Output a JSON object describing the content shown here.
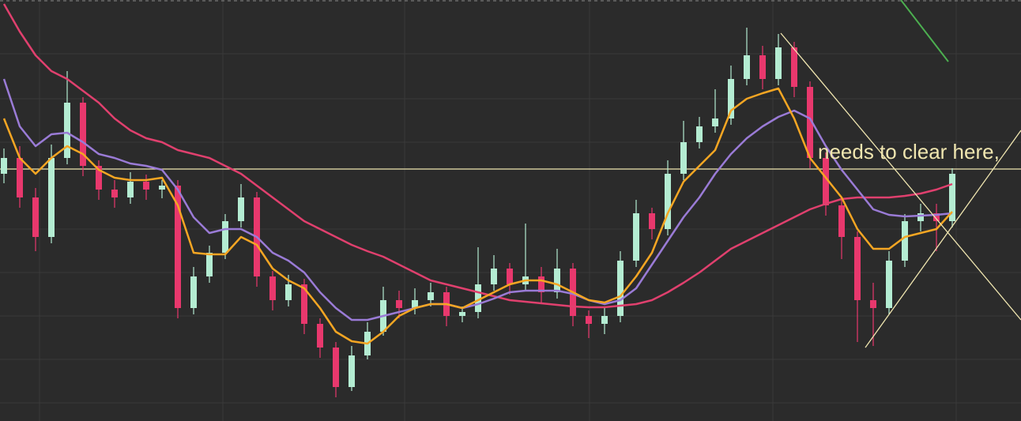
{
  "chart_data": {
    "type": "candlestick",
    "annotation": "needs to clear here,",
    "ylim": [
      0,
      533
    ],
    "level": 319,
    "up_color": "#b4ecd2",
    "down_color": "#e8386d",
    "open": [
      313,
      333,
      283,
      233,
      333,
      403,
      323,
      293,
      283,
      303,
      293,
      298,
      143,
      183,
      213,
      253,
      283,
      183,
      153,
      173,
      123,
      93,
      43,
      83,
      113,
      153,
      143,
      153,
      163,
      133,
      138,
      173,
      193,
      173,
      183,
      163,
      193,
      133,
      123,
      133,
      203,
      263,
      243,
      313,
      353,
      373,
      383,
      433,
      463,
      433,
      473,
      423,
      333,
      273,
      233,
      153,
      143,
      203,
      253,
      263,
      253
    ],
    "high": [
      345,
      348,
      295,
      350,
      443,
      410,
      330,
      305,
      315,
      312,
      305,
      305,
      195,
      222,
      262,
      300,
      290,
      190,
      185,
      180,
      130,
      100,
      95,
      125,
      170,
      165,
      168,
      175,
      170,
      145,
      220,
      210,
      200,
      250,
      195,
      218,
      200,
      140,
      145,
      215,
      280,
      270,
      330,
      380,
      385,
      420,
      450,
      498,
      475,
      490,
      480,
      430,
      340,
      280,
      240,
      175,
      215,
      262,
      275,
      275,
      320
    ],
    "low": [
      301,
      270,
      215,
      225,
      325,
      310,
      280,
      270,
      275,
      280,
      282,
      130,
      135,
      175,
      205,
      245,
      170,
      140,
      145,
      110,
      80,
      30,
      38,
      78,
      108,
      130,
      135,
      145,
      120,
      125,
      130,
      165,
      160,
      165,
      150,
      155,
      120,
      105,
      110,
      125,
      195,
      230,
      235,
      305,
      345,
      365,
      375,
      425,
      420,
      425,
      410,
      320,
      260,
      205,
      100,
      95,
      135,
      195,
      240,
      215,
      245
    ],
    "close": [
      333,
      283,
      233,
      333,
      403,
      323,
      293,
      283,
      303,
      293,
      298,
      143,
      183,
      213,
      253,
      283,
      183,
      153,
      173,
      123,
      93,
      43,
      83,
      113,
      153,
      143,
      153,
      163,
      133,
      138,
      173,
      193,
      173,
      183,
      163,
      193,
      133,
      123,
      133,
      203,
      263,
      243,
      313,
      353,
      373,
      383,
      433,
      463,
      433,
      473,
      423,
      333,
      273,
      233,
      153,
      143,
      203,
      253,
      263,
      253,
      313
    ],
    "series": [
      {
        "color": "#e0406e",
        "values": [
          528,
          493,
          463,
          443,
          433,
          418,
          403,
          383,
          368,
          358,
          353,
          343,
          338,
          333,
          323,
          313,
          298,
          283,
          268,
          253,
          243,
          233,
          223,
          215,
          208,
          198,
          188,
          178,
          173,
          168,
          163,
          158,
          153,
          151,
          149,
          147,
          145,
          144,
          144,
          146,
          148,
          153,
          163,
          175,
          188,
          203,
          218,
          228,
          238,
          248,
          258,
          268,
          275,
          281,
          283,
          283,
          283,
          285,
          288,
          293,
          300
        ]
      },
      {
        "color": "#9a7bd6",
        "values": [
          433,
          373,
          348,
          363,
          365,
          353,
          338,
          333,
          326,
          323,
          318,
          293,
          258,
          238,
          243,
          243,
          233,
          213,
          203,
          188,
          163,
          143,
          128,
          128,
          133,
          138,
          143,
          148,
          148,
          143,
          148,
          155,
          163,
          165,
          165,
          165,
          161,
          153,
          148,
          153,
          168,
          198,
          228,
          258,
          283,
          313,
          338,
          358,
          373,
          385,
          393,
          383,
          348,
          318,
          293,
          268,
          261,
          259,
          260,
          261,
          263
        ]
      },
      {
        "color": "#f5a623",
        "values": [
          383,
          333,
          313,
          333,
          348,
          338,
          318,
          308,
          305,
          305,
          308,
          273,
          213,
          211,
          211,
          233,
          223,
          193,
          178,
          168,
          143,
          113,
          101,
          98,
          113,
          133,
          143,
          148,
          148,
          143,
          153,
          163,
          173,
          178,
          178,
          173,
          163,
          153,
          150,
          158,
          183,
          213,
          263,
          303,
          323,
          343,
          393,
          408,
          415,
          421,
          383,
          333,
          308,
          283,
          243,
          218,
          218,
          233,
          238,
          243,
          265
        ]
      }
    ]
  }
}
